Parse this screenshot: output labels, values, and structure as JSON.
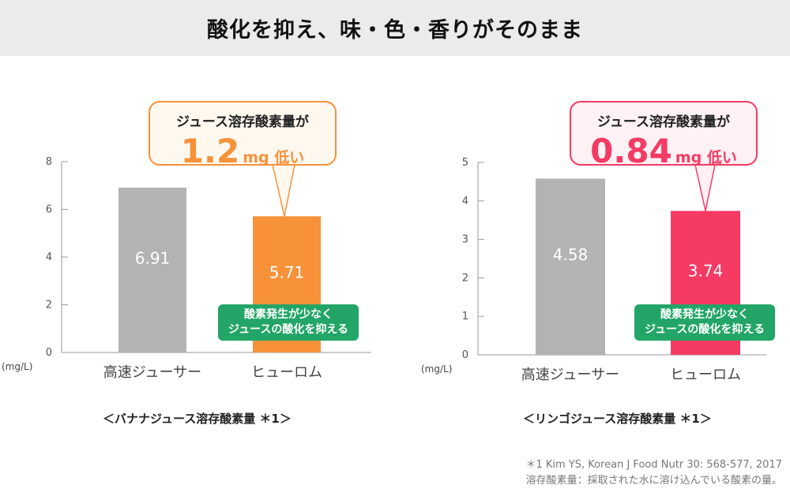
{
  "header": {
    "title": "酸化を抑え、味・色・香りがそのまま"
  },
  "chart_data": [
    {
      "type": "bar",
      "categories": [
        "高速ジューサー",
        "ヒューロム"
      ],
      "values": [
        6.91,
        5.71
      ],
      "value_labels": [
        "6.91",
        "5.71"
      ],
      "ylim": [
        0,
        8
      ],
      "yticks": [
        0,
        2,
        4,
        6,
        8
      ],
      "ylabel": "(mg/L)",
      "colors": [
        "#b3b3b3",
        "#f7923a"
      ],
      "callout": {
        "line1": "ジュース溶存酸素量が",
        "value": "1.2",
        "unit": "mg 低い",
        "color": "#f7923a",
        "bg": "#fff8ef"
      },
      "badge": {
        "line1": "酸素発生が少なく",
        "line2": "ジュースの酸化を抑える"
      },
      "caption": "＜バナナジュース溶存酸素量 ＊1＞"
    },
    {
      "type": "bar",
      "categories": [
        "高速ジューサー",
        "ヒューロム"
      ],
      "values": [
        4.58,
        3.74
      ],
      "value_labels": [
        "4.58",
        "3.74"
      ],
      "ylim": [
        0,
        5
      ],
      "yticks": [
        0,
        1,
        2,
        3,
        4,
        5
      ],
      "ylabel": "(mg/L)",
      "colors": [
        "#b3b3b3",
        "#f53b64"
      ],
      "callout": {
        "line1": "ジュース溶存酸素量が",
        "value": "0.84",
        "unit": "mg 低い",
        "color": "#f53b64",
        "bg": "#fff1f4"
      },
      "badge": {
        "line1": "酸素発生が少なく",
        "line2": "ジュースの酸化を抑える"
      },
      "caption": "＜リンゴジュース溶存酸素量 ＊1＞"
    }
  ],
  "footnote": {
    "line1": "＊1  Kim YS, Korean J Food Nutr 30: 568-577, 2017",
    "line2": "溶存酸素量：採取された水に溶け込んでいる酸素の量。"
  }
}
